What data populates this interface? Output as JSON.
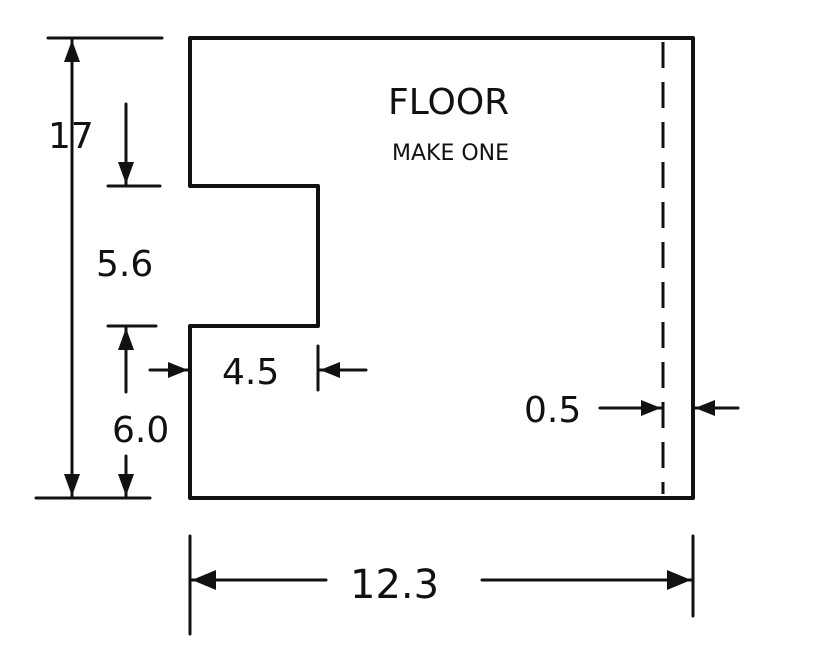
{
  "part": {
    "title": "FLOOR",
    "note": "MAKE ONE"
  },
  "dimensions": {
    "total_height": "17",
    "notch_height": "5.6",
    "bottom_height": "6.0",
    "notch_depth": "4.5",
    "fold_margin": "0.5",
    "total_width": "12.3"
  }
}
